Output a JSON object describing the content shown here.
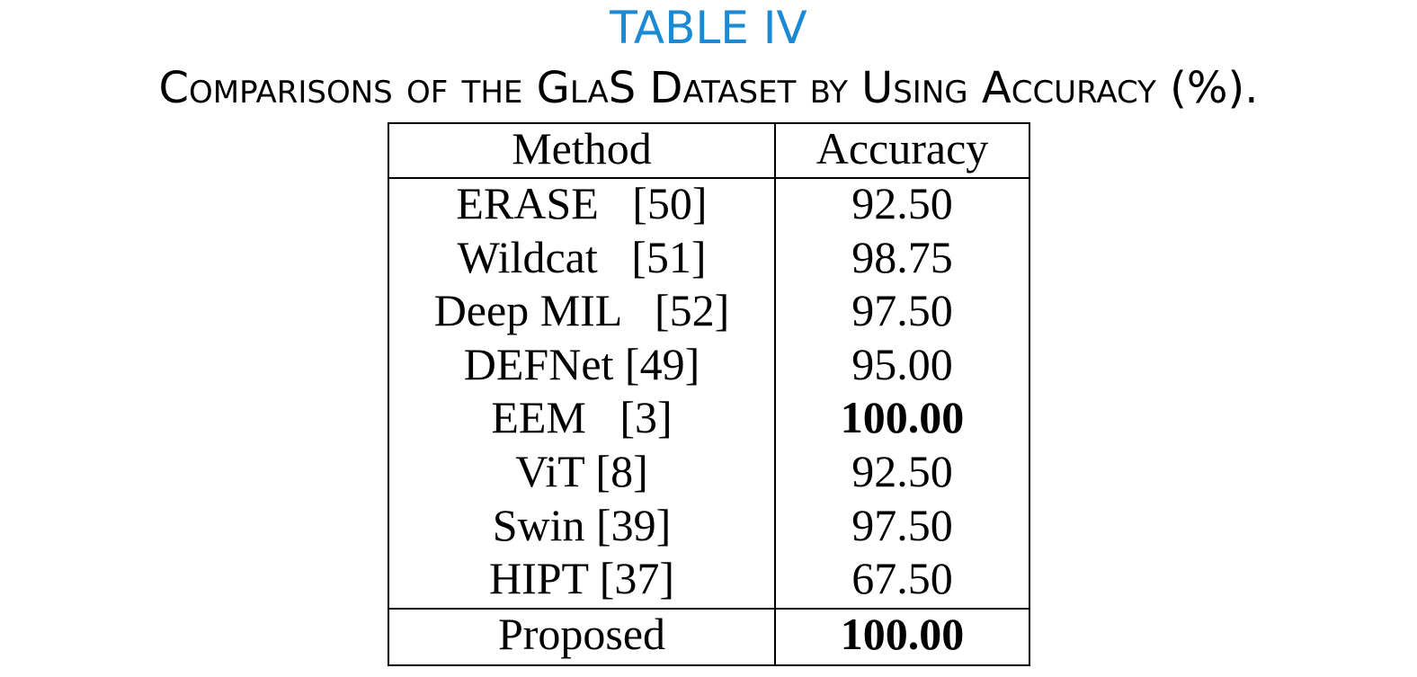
{
  "table_number": "TABLE IV",
  "caption": "Comparisons of the GlaS Dataset by Using Accuracy (%).",
  "header": {
    "method": "Method",
    "accuracy": "Accuracy"
  },
  "rows": [
    {
      "method": "ERASE   [50]",
      "accuracy": "92.50",
      "bold": false
    },
    {
      "method": "Wildcat   [51]",
      "accuracy": "98.75",
      "bold": false
    },
    {
      "method": "Deep MIL   [52]",
      "accuracy": "97.50",
      "bold": false
    },
    {
      "method": "DEFNet [49]",
      "accuracy": "95.00",
      "bold": false
    },
    {
      "method": "EEM   [3]",
      "accuracy": "100.00",
      "bold": true
    },
    {
      "method": "ViT [8]",
      "accuracy": "92.50",
      "bold": false
    },
    {
      "method": "Swin [39]",
      "accuracy": "97.50",
      "bold": false
    },
    {
      "method": "HIPT [37]",
      "accuracy": "67.50",
      "bold": false
    }
  ],
  "footer": {
    "method": "Proposed",
    "accuracy": "100.00",
    "bold": true
  },
  "colors": {
    "table_number": "#1a8ad4",
    "text": "#000000"
  }
}
